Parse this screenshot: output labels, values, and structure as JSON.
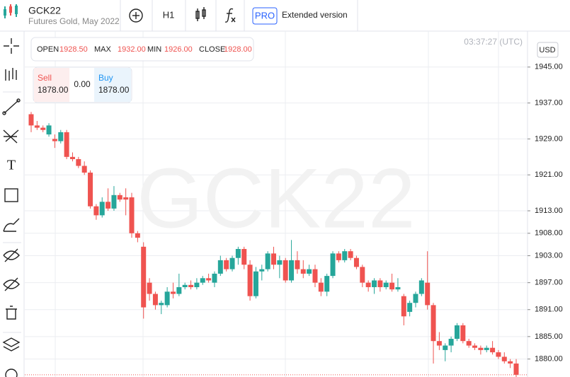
{
  "header": {
    "symbol": "GCK22",
    "description": "Futures Gold, May 2022",
    "interval": "H1",
    "pro": "PRO",
    "extended": "Extended version"
  },
  "clock": "03:37:27 (UTC)",
  "currency": "USD",
  "ohlc": {
    "open_label": "OPEN",
    "open": "1928.50",
    "max_label": "MAX",
    "max": "1932.00",
    "min_label": "MIN",
    "min": "1926.00",
    "close_label": "CLOSE",
    "close": "1928.00"
  },
  "trade": {
    "sell_label": "Sell",
    "sell": "1878.00",
    "spread": "0.00",
    "buy_label": "Buy",
    "buy": "1878.00"
  },
  "chart_data": {
    "type": "candlestick",
    "up_color": "#26a69a",
    "down_color": "#ef5350",
    "grid": true,
    "ylim": [
      1876,
      1953
    ],
    "yticks": [
      {
        "value": 1945,
        "label": "1945.00"
      },
      {
        "value": 1937,
        "label": "1937.00"
      },
      {
        "value": 1929,
        "label": "1929.00"
      },
      {
        "value": 1921,
        "label": "1921.00"
      },
      {
        "value": 1913,
        "label": "1913.00"
      },
      {
        "value": 1908,
        "label": "1908.00"
      },
      {
        "value": 1903,
        "label": "1903.00"
      },
      {
        "value": 1897,
        "label": "1897.00"
      },
      {
        "value": 1891,
        "label": "1891.00"
      },
      {
        "value": 1885,
        "label": "1885.00"
      },
      {
        "value": 1880,
        "label": "1880.00"
      }
    ],
    "categories": [
      null,
      null,
      null,
      null,
      null,
      null,
      null,
      null,
      null,
      null,
      null,
      null,
      null,
      null,
      null,
      null,
      null,
      null,
      null,
      null,
      null,
      null,
      null,
      null,
      null,
      null,
      null,
      null,
      null,
      null,
      null,
      null,
      null,
      null,
      null,
      null,
      null,
      null,
      null,
      null,
      null,
      null,
      null,
      null,
      null,
      null,
      null,
      null,
      null,
      null,
      null,
      null,
      null,
      null,
      null,
      null,
      null,
      null,
      null,
      null,
      null,
      null,
      null,
      null,
      null,
      null,
      null,
      null,
      null,
      null,
      null,
      null,
      null,
      null,
      null,
      null,
      null,
      null,
      null,
      null,
      null,
      null,
      null
    ],
    "open": [
      1934.5,
      1932,
      1931.5,
      1930,
      1929,
      1928.5,
      1930.5,
      1925,
      1924.5,
      1923,
      1921.5,
      1914,
      1912,
      1915,
      1913.5,
      1916.5,
      1916,
      1916,
      1908,
      1905,
      1897,
      1894.5,
      1892,
      1892,
      1895,
      1894.5,
      1896,
      1896.5,
      1896,
      1897,
      1898,
      1897,
      1899,
      1902,
      1900,
      1902.5,
      1904.5,
      1901,
      1894,
      1899.5,
      1900,
      1903.5,
      1901,
      1902,
      1897.5,
      1902,
      1900,
      1899,
      1900,
      1897,
      1895,
      1898.5,
      1903.5,
      1902,
      1904,
      1902.5,
      1900.5,
      1897,
      1896,
      1897.5,
      1896,
      1897,
      1895.5,
      1894,
      1890.5,
      1892.5,
      1894.5,
      1897,
      1892,
      1884,
      1882,
      1883,
      1884.5,
      1887.5,
      1884,
      1883,
      1882.5,
      1882,
      1882.5,
      1881.5,
      1880.5,
      1879.5,
      1879
    ],
    "high": [
      1935,
      1933,
      1932,
      1932.5,
      1930,
      1931,
      1931,
      1926,
      1925,
      1924,
      1922,
      1914.5,
      1916,
      1918,
      1918.5,
      1917,
      1918,
      1917,
      1908.5,
      1906,
      1898,
      1895,
      1893,
      1896,
      1897,
      1899,
      1897,
      1897.5,
      1898,
      1898.5,
      1899,
      1899.5,
      1903,
      1902.5,
      1903,
      1905,
      1905,
      1902,
      1900.5,
      1901,
      1904,
      1905,
      1903,
      1902.5,
      1906.5,
      1904,
      1902,
      1901,
      1901,
      1898,
      1899,
      1904,
      1904,
      1904.5,
      1904.5,
      1903,
      1901,
      1897.5,
      1898,
      1898,
      1897.5,
      1899,
      1898,
      1894.5,
      1893,
      1895,
      1898,
      1904,
      1892.5,
      1886,
      1883.5,
      1885,
      1888,
      1888,
      1884.5,
      1883.5,
      1883,
      1883,
      1884,
      1882,
      1881.5,
      1880,
      1880
    ],
    "low": [
      1930.5,
      1931,
      1930.5,
      1929.5,
      1927,
      1928,
      1924.5,
      1924,
      1922.5,
      1921,
      1913.5,
      1911,
      1911.5,
      1913,
      1913,
      1915,
      1912,
      1907,
      1906,
      1889,
      1893,
      1891,
      1890,
      1891.5,
      1893.5,
      1894,
      1895.5,
      1895.5,
      1895.5,
      1896.5,
      1897,
      1896,
      1898.5,
      1899.5,
      1899.5,
      1901,
      1900,
      1893,
      1893.5,
      1897.5,
      1899.5,
      1900,
      1898,
      1897,
      1897,
      1899,
      1898,
      1898.5,
      1896,
      1894,
      1894,
      1898,
      1901.5,
      1901.5,
      1902,
      1900,
      1896,
      1895,
      1894.5,
      1895,
      1895.5,
      1895,
      1895,
      1887.5,
      1889.5,
      1891.5,
      1894,
      1891,
      1879,
      1882,
      1879.5,
      1881.5,
      1884,
      1883.5,
      1882.5,
      1882,
      1881,
      1881.5,
      1881,
      1880,
      1879,
      1878,
      1876
    ],
    "close": [
      1932,
      1931.5,
      1931,
      1932,
      1928.5,
      1930.5,
      1925,
      1924.5,
      1923,
      1921.5,
      1914,
      1912,
      1915,
      1913.5,
      1916.5,
      1915.5,
      1915.5,
      1908,
      1907,
      1891.5,
      1894.5,
      1892,
      1892.5,
      1895,
      1894.5,
      1896,
      1896.5,
      1896,
      1897,
      1898,
      1897.5,
      1899,
      1902,
      1900,
      1902.5,
      1904.5,
      1901,
      1894,
      1899.5,
      1900,
      1903.5,
      1901,
      1902,
      1897.5,
      1902,
      1900,
      1899,
      1900,
      1897,
      1895,
      1898.5,
      1903.5,
      1902,
      1904,
      1902.5,
      1900.5,
      1897,
      1896,
      1897.5,
      1896,
      1897,
      1895.5,
      1896,
      1889.5,
      1892.5,
      1894.5,
      1897.5,
      1892,
      1884,
      1883,
      1883,
      1884.5,
      1887.5,
      1884,
      1883,
      1882.5,
      1882,
      1882.5,
      1881.5,
      1880.5,
      1879.5,
      1879,
      1876.5
    ]
  }
}
